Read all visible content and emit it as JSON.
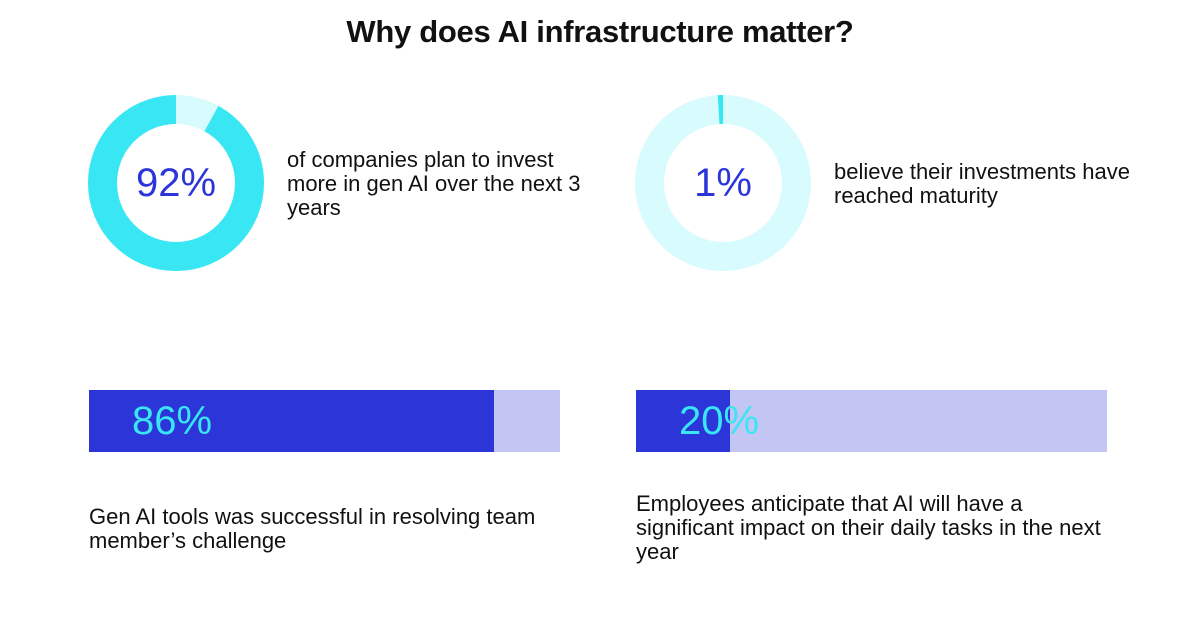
{
  "title": "Why does AI infrastructure matter?",
  "colors": {
    "donut_fill": "#38e6f4",
    "donut_track": "#d8fbfd",
    "bar_fill": "#2c35d8",
    "bar_track": "#c3c5f2",
    "value_text_dark": "#2c35d8",
    "value_text_light": "#38e6f4"
  },
  "chart_data": [
    {
      "type": "pie",
      "style": "donut",
      "value": 92,
      "max": 100,
      "label": "92%",
      "caption": "of companies plan to invest more in gen AI over the next 3 years"
    },
    {
      "type": "pie",
      "style": "donut",
      "value": 1,
      "max": 100,
      "label": "1%",
      "caption": "believe their investments have reached maturity"
    },
    {
      "type": "bar",
      "orientation": "horizontal",
      "value": 86,
      "max": 100,
      "label": "86%",
      "caption": "Gen AI tools was successful in resolving team member’s challenge"
    },
    {
      "type": "bar",
      "orientation": "horizontal",
      "value": 20,
      "max": 100,
      "label": "20%",
      "caption": "Employees anticipate that AI will have a significant impact on their daily tasks in the next year"
    }
  ]
}
